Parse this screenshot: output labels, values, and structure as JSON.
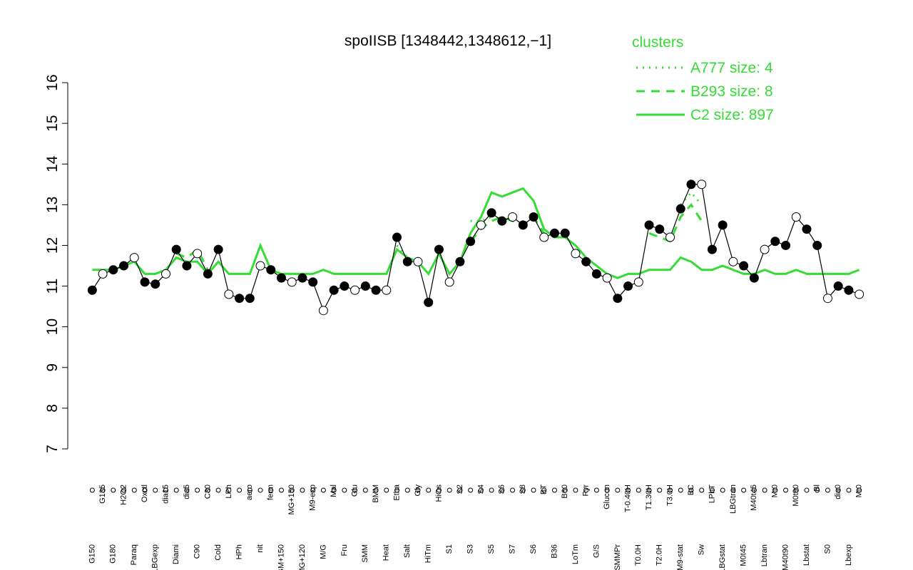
{
  "chart_data": {
    "type": "line",
    "title": "spoIISB [1348442,1348612,−1]",
    "legend_title": "clusters",
    "categories": [
      "G150",
      "G135",
      "G180",
      "H2O2",
      "Paraq",
      "Oxctl",
      "LBGexp",
      "dia15",
      "Diami",
      "dia5",
      "C90",
      "C30",
      "Cold",
      "LPh",
      "HPh",
      "aero",
      "nit",
      "ferm",
      "GM+150",
      "MG+150",
      "MG+120",
      "M9-exp",
      "M/G",
      "Mal",
      "Fru",
      "Glu",
      "SMM",
      "BMM",
      "Heat",
      "Etha",
      "Salt",
      "Gly",
      "HiTm",
      "HiOs",
      "S1",
      "S2",
      "S3",
      "S4",
      "S5",
      "S6",
      "S7",
      "S8",
      "S6",
      "BT",
      "B36",
      "B60",
      "LoTm",
      "Pyr",
      "G/S",
      "Glucon",
      "SMMPr",
      "T-0.40H",
      "T0.0H",
      "T1.30H",
      "T2.0H",
      "T3.0H",
      "M9-stat",
      "BC",
      "Sw",
      "LPhT",
      "LBGstat",
      "LBGtran",
      "M0t45",
      "M40t45",
      "Lbtran",
      "Mt0",
      "M40t90",
      "M0t90",
      "Lbstat",
      "Bl",
      "S0",
      "dia0",
      "Lbexp",
      "Mt0"
    ],
    "values": [
      10.9,
      11.3,
      11.4,
      11.5,
      11.7,
      11.1,
      11.05,
      11.3,
      11.9,
      11.5,
      11.8,
      11.3,
      11.9,
      10.8,
      10.7,
      10.7,
      11.5,
      11.4,
      11.2,
      11.1,
      11.2,
      11.1,
      10.4,
      10.9,
      11.0,
      10.9,
      11.0,
      10.9,
      10.9,
      12.2,
      11.6,
      11.6,
      10.6,
      11.9,
      11.1,
      11.6,
      12.1,
      12.5,
      12.8,
      12.6,
      12.7,
      12.5,
      12.7,
      12.2,
      12.3,
      12.3,
      11.8,
      11.6,
      11.3,
      11.2,
      10.7,
      11.0,
      11.1,
      12.5,
      12.4,
      12.2,
      12.9,
      13.5,
      13.5,
      11.9,
      12.5,
      11.6,
      11.5,
      11.2,
      11.9,
      12.1,
      12.0,
      12.7,
      12.4,
      12.0,
      10.7,
      11.0,
      10.9,
      10.8
    ],
    "color": "#000000",
    "series": [
      {
        "name": "A777 size: 4",
        "color": "#33dd33",
        "style": "dotted",
        "values": [
          null,
          null,
          null,
          null,
          null,
          null,
          null,
          null,
          null,
          null,
          null,
          null,
          null,
          null,
          null,
          null,
          null,
          null,
          null,
          null,
          null,
          null,
          null,
          null,
          null,
          null,
          null,
          null,
          null,
          12.0,
          11.7,
          11.6,
          null,
          null,
          null,
          null,
          12.6,
          12.6,
          12.7,
          null,
          null,
          null,
          null,
          null,
          null,
          null,
          null,
          null,
          null,
          null,
          null,
          null,
          null,
          null,
          null,
          null,
          13.0,
          13.3,
          13.0,
          null,
          null,
          null,
          null,
          null,
          null,
          null,
          null,
          null,
          null,
          null,
          null,
          null,
          null,
          null
        ]
      },
      {
        "name": "B293 size: 8",
        "color": "#33dd33",
        "style": "dashed",
        "values": [
          null,
          null,
          null,
          null,
          null,
          null,
          null,
          null,
          11.8,
          11.7,
          11.9,
          11.4,
          null,
          null,
          null,
          null,
          null,
          null,
          null,
          null,
          null,
          null,
          null,
          null,
          null,
          null,
          null,
          null,
          null,
          null,
          null,
          null,
          null,
          null,
          null,
          null,
          12.1,
          12.4,
          12.6,
          12.7,
          12.6,
          12.5,
          12.7,
          12.3,
          12.2,
          null,
          null,
          null,
          null,
          null,
          null,
          null,
          null,
          12.3,
          12.2,
          12.1,
          12.7,
          13.0,
          12.6,
          null,
          null,
          null,
          null,
          null,
          null,
          null,
          null,
          null,
          null,
          null,
          null,
          null,
          null,
          null
        ]
      },
      {
        "name": "C2 size: 897",
        "color": "#33dd33",
        "style": "solid",
        "values": [
          11.4,
          11.4,
          11.4,
          11.5,
          11.6,
          11.3,
          11.3,
          11.4,
          11.7,
          11.6,
          11.6,
          11.3,
          11.6,
          11.3,
          11.3,
          11.3,
          12.0,
          11.4,
          11.3,
          11.3,
          11.3,
          11.3,
          11.4,
          11.3,
          11.3,
          11.3,
          11.3,
          11.3,
          11.3,
          11.9,
          11.7,
          11.6,
          11.3,
          11.8,
          11.3,
          11.6,
          12.3,
          12.7,
          13.3,
          13.2,
          13.3,
          13.4,
          13.1,
          12.4,
          12.2,
          12.2,
          12.0,
          11.7,
          11.5,
          11.3,
          11.2,
          11.3,
          11.3,
          11.4,
          11.4,
          11.4,
          11.7,
          11.6,
          11.4,
          11.4,
          11.5,
          11.4,
          11.3,
          11.3,
          11.4,
          11.3,
          11.3,
          11.4,
          11.3,
          11.3,
          11.3,
          11.3,
          11.3,
          11.4
        ]
      }
    ],
    "ylim": [
      7,
      16
    ],
    "yticks": [
      7,
      8,
      9,
      10,
      11,
      12,
      13,
      14,
      15,
      16
    ]
  }
}
